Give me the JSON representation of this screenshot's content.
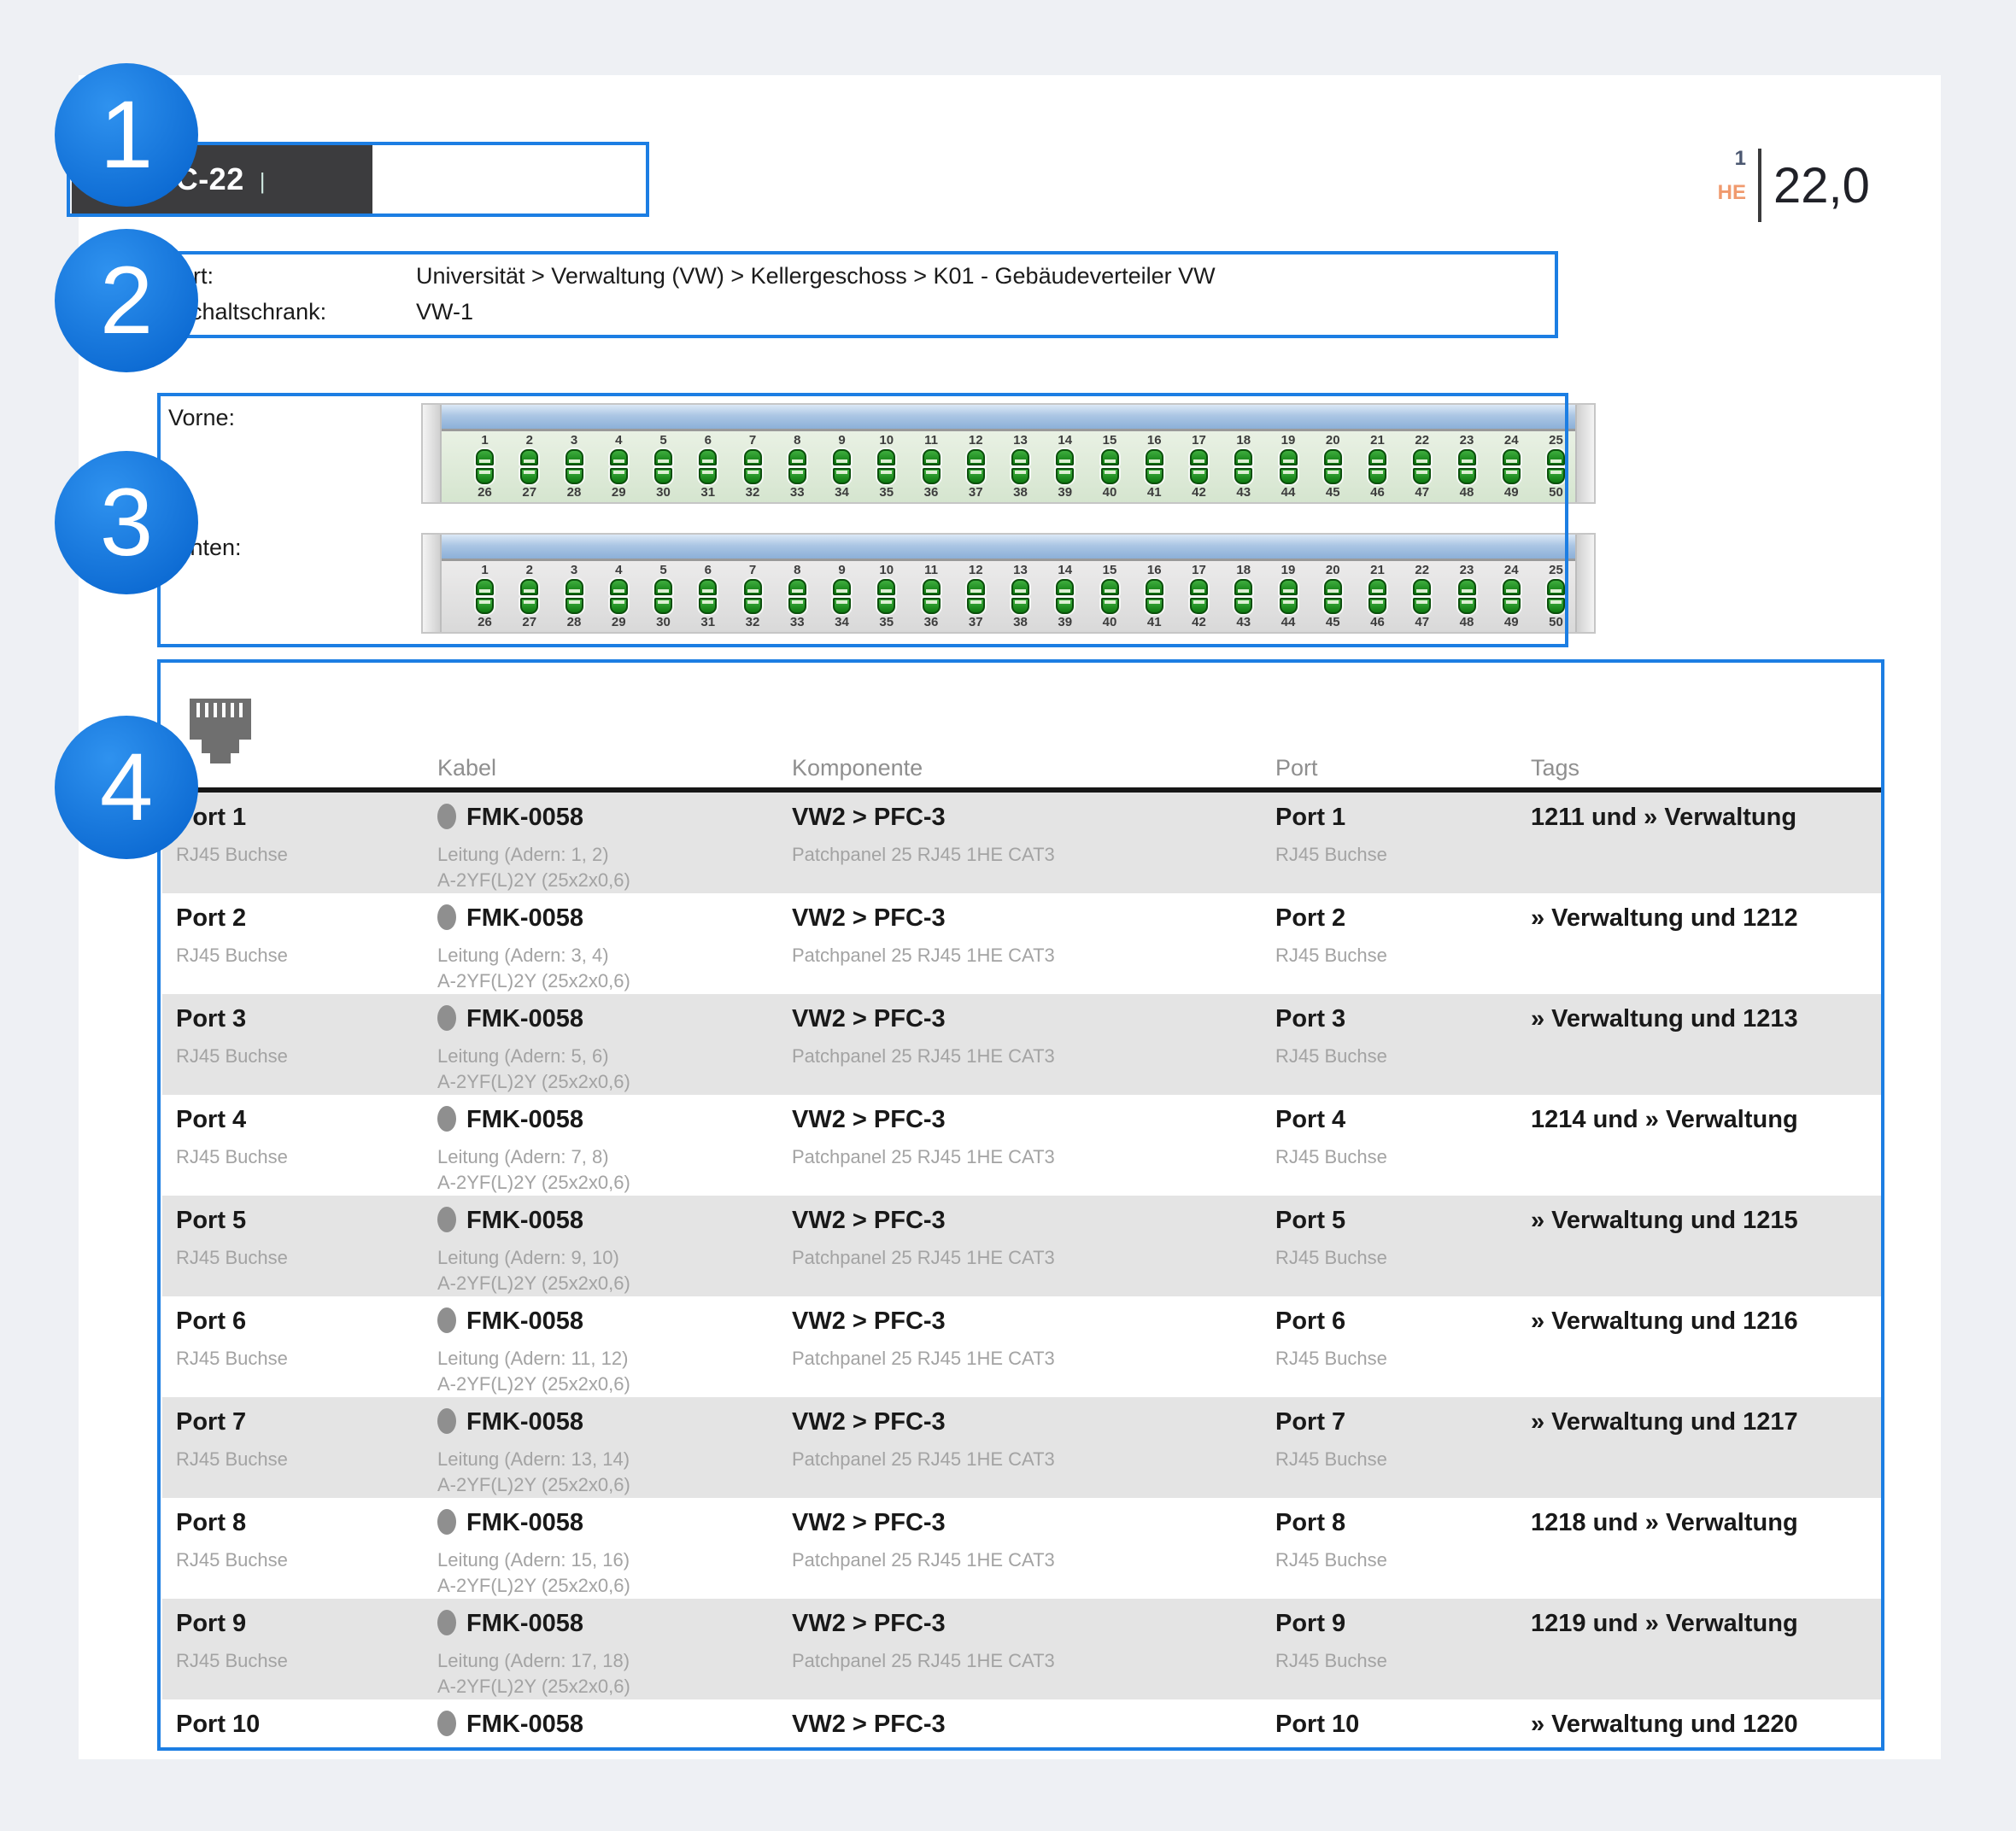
{
  "annotations": {
    "steps": [
      "1",
      "2",
      "3",
      "4"
    ]
  },
  "header": {
    "chevron": ">",
    "title": "PFC-22",
    "separator": "|",
    "subtitle": "PFC-22"
  },
  "size_indicator": {
    "count": "1",
    "unit": "HE",
    "value": "22,0"
  },
  "info": {
    "location_label": "Ort:",
    "location_value": "Universität > Verwaltung (VW) > Kellergeschoss > K01 - Gebäudeverteiler VW",
    "cabinet_label": "Schaltschrank:",
    "cabinet_value": "VW-1"
  },
  "panels": {
    "front_label": "Vorne:",
    "back_label": "Hinten:",
    "top_port_numbers": [
      1,
      2,
      3,
      4,
      5,
      6,
      7,
      8,
      9,
      10,
      11,
      12,
      13,
      14,
      15,
      16,
      17,
      18,
      19,
      20,
      21,
      22,
      23,
      24,
      25
    ],
    "bottom_port_numbers": [
      26,
      27,
      28,
      29,
      30,
      31,
      32,
      33,
      34,
      35,
      36,
      37,
      38,
      39,
      40,
      41,
      42,
      43,
      44,
      45,
      46,
      47,
      48,
      49,
      50
    ]
  },
  "connection_table": {
    "columns": {
      "cable": "Kabel",
      "component": "Komponente",
      "port": "Port",
      "tags": "Tags"
    },
    "rows": [
      {
        "port": "Port 1",
        "port_type": "RJ45 Buchse",
        "cable": "FMK-0058",
        "cable_detail_1": "Leitung (Adern: 1, 2)",
        "cable_detail_2": "A-2YF(L)2Y (25x2x0,6)",
        "component": "VW2 > PFC-3",
        "component_detail": "Patchpanel 25 RJ45 1HE CAT3",
        "far_port": "Port 1",
        "far_port_type": "RJ45 Buchse",
        "tags": "1211 und » Verwaltung"
      },
      {
        "port": "Port 2",
        "port_type": "RJ45 Buchse",
        "cable": "FMK-0058",
        "cable_detail_1": "Leitung (Adern: 3, 4)",
        "cable_detail_2": "A-2YF(L)2Y (25x2x0,6)",
        "component": "VW2 > PFC-3",
        "component_detail": "Patchpanel 25 RJ45 1HE CAT3",
        "far_port": "Port 2",
        "far_port_type": "RJ45 Buchse",
        "tags": "» Verwaltung und 1212"
      },
      {
        "port": "Port 3",
        "port_type": "RJ45 Buchse",
        "cable": "FMK-0058",
        "cable_detail_1": "Leitung (Adern: 5, 6)",
        "cable_detail_2": "A-2YF(L)2Y (25x2x0,6)",
        "component": "VW2 > PFC-3",
        "component_detail": "Patchpanel 25 RJ45 1HE CAT3",
        "far_port": "Port 3",
        "far_port_type": "RJ45 Buchse",
        "tags": "» Verwaltung und 1213"
      },
      {
        "port": "Port 4",
        "port_type": "RJ45 Buchse",
        "cable": "FMK-0058",
        "cable_detail_1": "Leitung (Adern: 7, 8)",
        "cable_detail_2": "A-2YF(L)2Y (25x2x0,6)",
        "component": "VW2 > PFC-3",
        "component_detail": "Patchpanel 25 RJ45 1HE CAT3",
        "far_port": "Port 4",
        "far_port_type": "RJ45 Buchse",
        "tags": "1214 und » Verwaltung"
      },
      {
        "port": "Port 5",
        "port_type": "RJ45 Buchse",
        "cable": "FMK-0058",
        "cable_detail_1": "Leitung (Adern: 9, 10)",
        "cable_detail_2": "A-2YF(L)2Y (25x2x0,6)",
        "component": "VW2 > PFC-3",
        "component_detail": "Patchpanel 25 RJ45 1HE CAT3",
        "far_port": "Port 5",
        "far_port_type": "RJ45 Buchse",
        "tags": "» Verwaltung und 1215"
      },
      {
        "port": "Port 6",
        "port_type": "RJ45 Buchse",
        "cable": "FMK-0058",
        "cable_detail_1": "Leitung (Adern: 11, 12)",
        "cable_detail_2": "A-2YF(L)2Y (25x2x0,6)",
        "component": "VW2 > PFC-3",
        "component_detail": "Patchpanel 25 RJ45 1HE CAT3",
        "far_port": "Port 6",
        "far_port_type": "RJ45 Buchse",
        "tags": "» Verwaltung und 1216"
      },
      {
        "port": "Port 7",
        "port_type": "RJ45 Buchse",
        "cable": "FMK-0058",
        "cable_detail_1": "Leitung (Adern: 13, 14)",
        "cable_detail_2": "A-2YF(L)2Y (25x2x0,6)",
        "component": "VW2 > PFC-3",
        "component_detail": "Patchpanel 25 RJ45 1HE CAT3",
        "far_port": "Port 7",
        "far_port_type": "RJ45 Buchse",
        "tags": "» Verwaltung und 1217"
      },
      {
        "port": "Port 8",
        "port_type": "RJ45 Buchse",
        "cable": "FMK-0058",
        "cable_detail_1": "Leitung (Adern: 15, 16)",
        "cable_detail_2": "A-2YF(L)2Y (25x2x0,6)",
        "component": "VW2 > PFC-3",
        "component_detail": "Patchpanel 25 RJ45 1HE CAT3",
        "far_port": "Port 8",
        "far_port_type": "RJ45 Buchse",
        "tags": "1218 und » Verwaltung"
      },
      {
        "port": "Port 9",
        "port_type": "RJ45 Buchse",
        "cable": "FMK-0058",
        "cable_detail_1": "Leitung (Adern: 17, 18)",
        "cable_detail_2": "A-2YF(L)2Y (25x2x0,6)",
        "component": "VW2 > PFC-3",
        "component_detail": "Patchpanel 25 RJ45 1HE CAT3",
        "far_port": "Port 9",
        "far_port_type": "RJ45 Buchse",
        "tags": "1219 und » Verwaltung"
      },
      {
        "port": "Port 10",
        "port_type": "",
        "cable": "FMK-0058",
        "cable_detail_1": "",
        "cable_detail_2": "",
        "component": "VW2 > PFC-3",
        "component_detail": "",
        "far_port": "Port 10",
        "far_port_type": "",
        "tags": "» Verwaltung und 1220"
      }
    ]
  },
  "colors": {
    "annotation_blue": "#1c7ee3",
    "he_unit_orange": "#f09a6e",
    "titlebar_dark": "#3c3c3e",
    "row_stripe_gray": "#e4e4e4",
    "port_green": "#18841a",
    "panel_front_green": "#dcead5",
    "panel_back_gray": "#e0e0e0",
    "panel_titlebar_blue": "#9cbbdf"
  }
}
